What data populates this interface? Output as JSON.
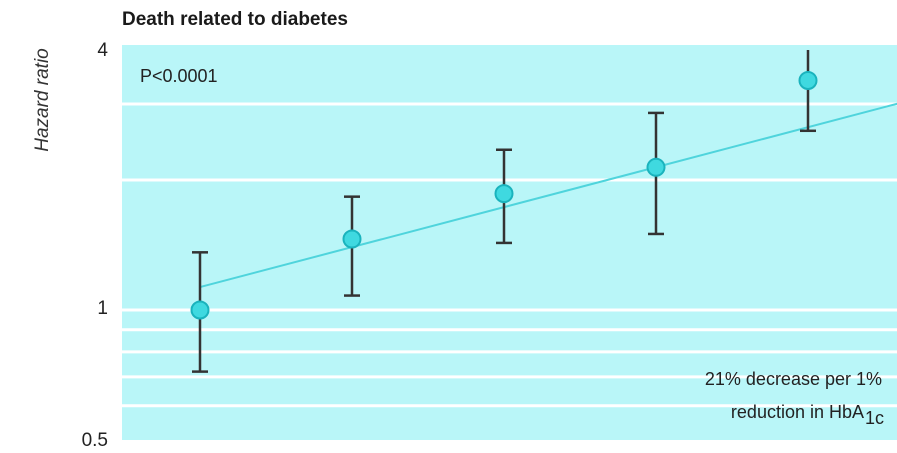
{
  "chart_data": {
    "type": "scatter",
    "title": "Death related to diabetes",
    "ylabel": "Hazard ratio",
    "xlabel": "",
    "yscale": "log",
    "ylim": [
      0.5,
      4
    ],
    "yticks": [
      {
        "value": 4,
        "label": "4"
      },
      {
        "value": 1,
        "label": "1"
      },
      {
        "value": 0.5,
        "label": "0.5"
      }
    ],
    "xlim": [
      0,
      6
    ],
    "points": [
      {
        "x": 1,
        "y": 1.0,
        "lo": 0.72,
        "hi": 1.36
      },
      {
        "x": 2,
        "y": 1.46,
        "lo": 1.08,
        "hi": 1.83
      },
      {
        "x": 3,
        "y": 1.86,
        "lo": 1.43,
        "hi": 2.35
      },
      {
        "x": 4,
        "y": 2.14,
        "lo": 1.5,
        "hi": 2.86
      },
      {
        "x": 5,
        "y": 3.4,
        "lo": 2.6,
        "hi": 4.0
      }
    ],
    "trend_line": {
      "x": [
        1,
        6
      ],
      "y": [
        1.13,
        3.28
      ]
    },
    "annotations": {
      "p_value": "P<0.0001",
      "effect_line1": "21% decrease per 1%",
      "effect_line2_prefix": "reduction in HbA",
      "effect_line2_sub": "1c"
    },
    "colors": {
      "plot_background": "#b9f6f8",
      "gridline": "#ffffff",
      "marker_fill": "#3fd9e0",
      "marker_edge": "#1ab3bd",
      "trend": "#4fd4dc",
      "error_bar": "#333333"
    },
    "grid": true
  }
}
